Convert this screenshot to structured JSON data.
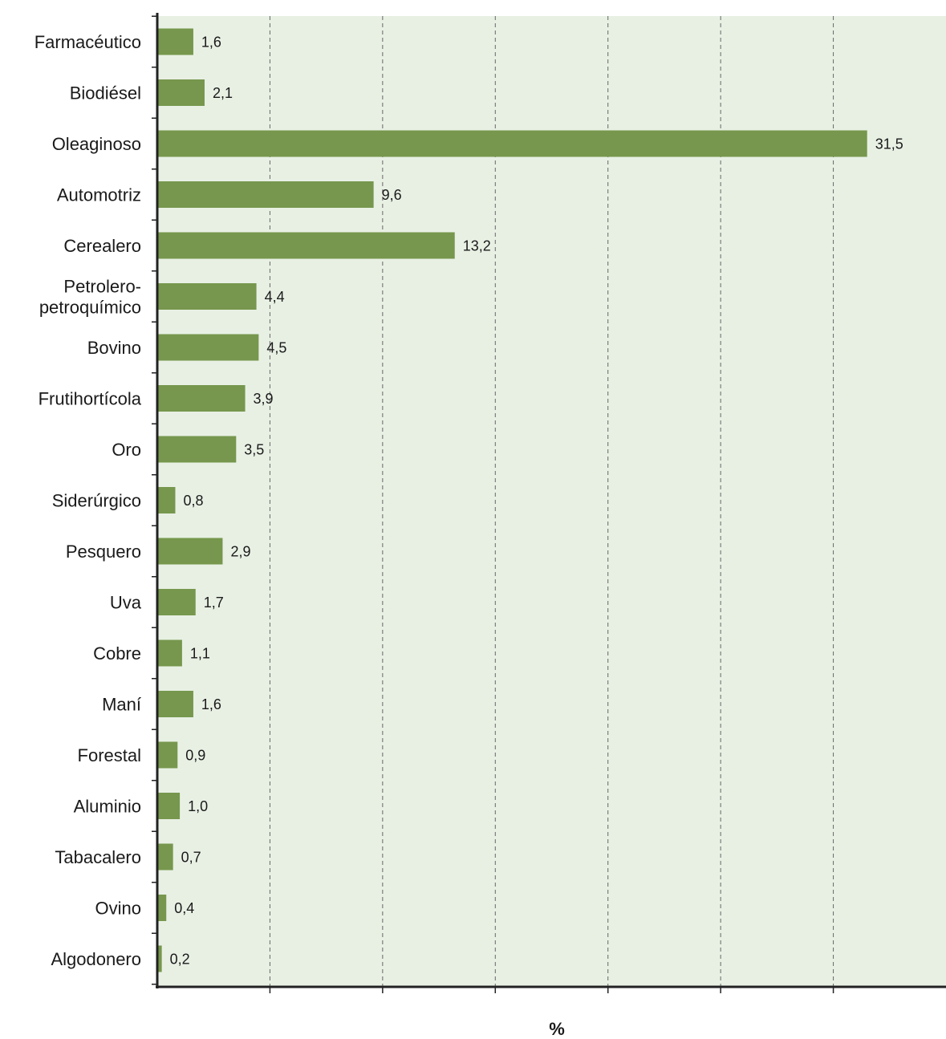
{
  "chart_data": {
    "type": "bar",
    "orientation": "horizontal",
    "categories": [
      "Farmacéutico",
      "Biodiésel",
      "Oleaginoso",
      "Automotriz",
      "Cerealero",
      "Petrolero-petroquímico",
      "Bovino",
      "Frutihortícola",
      "Oro",
      "Siderúrgico",
      "Pesquero",
      "Uva",
      "Cobre",
      "Maní",
      "Forestal",
      "Aluminio",
      "Tabacalero",
      "Ovino",
      "Algodonero"
    ],
    "category_lines": [
      [
        "Farmacéutico"
      ],
      [
        "Biodiésel"
      ],
      [
        "Oleaginoso"
      ],
      [
        "Automotriz"
      ],
      [
        "Cerealero"
      ],
      [
        "Petrolero-",
        "petroquímico"
      ],
      [
        "Bovino"
      ],
      [
        "Frutihortícola"
      ],
      [
        "Oro"
      ],
      [
        "Siderúrgico"
      ],
      [
        "Pesquero"
      ],
      [
        "Uva"
      ],
      [
        "Cobre"
      ],
      [
        "Maní"
      ],
      [
        "Forestal"
      ],
      [
        "Aluminio"
      ],
      [
        "Tabacalero"
      ],
      [
        "Ovino"
      ],
      [
        "Algodonero"
      ]
    ],
    "values": [
      1.6,
      2.1,
      31.5,
      9.6,
      13.2,
      4.4,
      4.5,
      3.9,
      3.5,
      0.8,
      2.9,
      1.7,
      1.1,
      1.6,
      0.9,
      1.0,
      0.7,
      0.4,
      0.2
    ],
    "value_labels": [
      "1,6",
      "2,1",
      "31,5",
      "9,6",
      "13,2",
      "4,4",
      "4,5",
      "3,9",
      "3,5",
      "0,8",
      "2,9",
      "1,7",
      "1,1",
      "1,6",
      "0,9",
      "1,0",
      "0,7",
      "0,4",
      "0,2"
    ],
    "title": "",
    "xlabel": "%",
    "ylabel": "",
    "xlim": [
      0,
      35
    ],
    "gridlines_x": [
      5,
      10,
      15,
      20,
      25,
      30
    ],
    "grid": true,
    "colors": {
      "bar": "#76974d",
      "plot_background": "#e8f0e4",
      "grid": "#666666",
      "axis": "#222222"
    }
  }
}
